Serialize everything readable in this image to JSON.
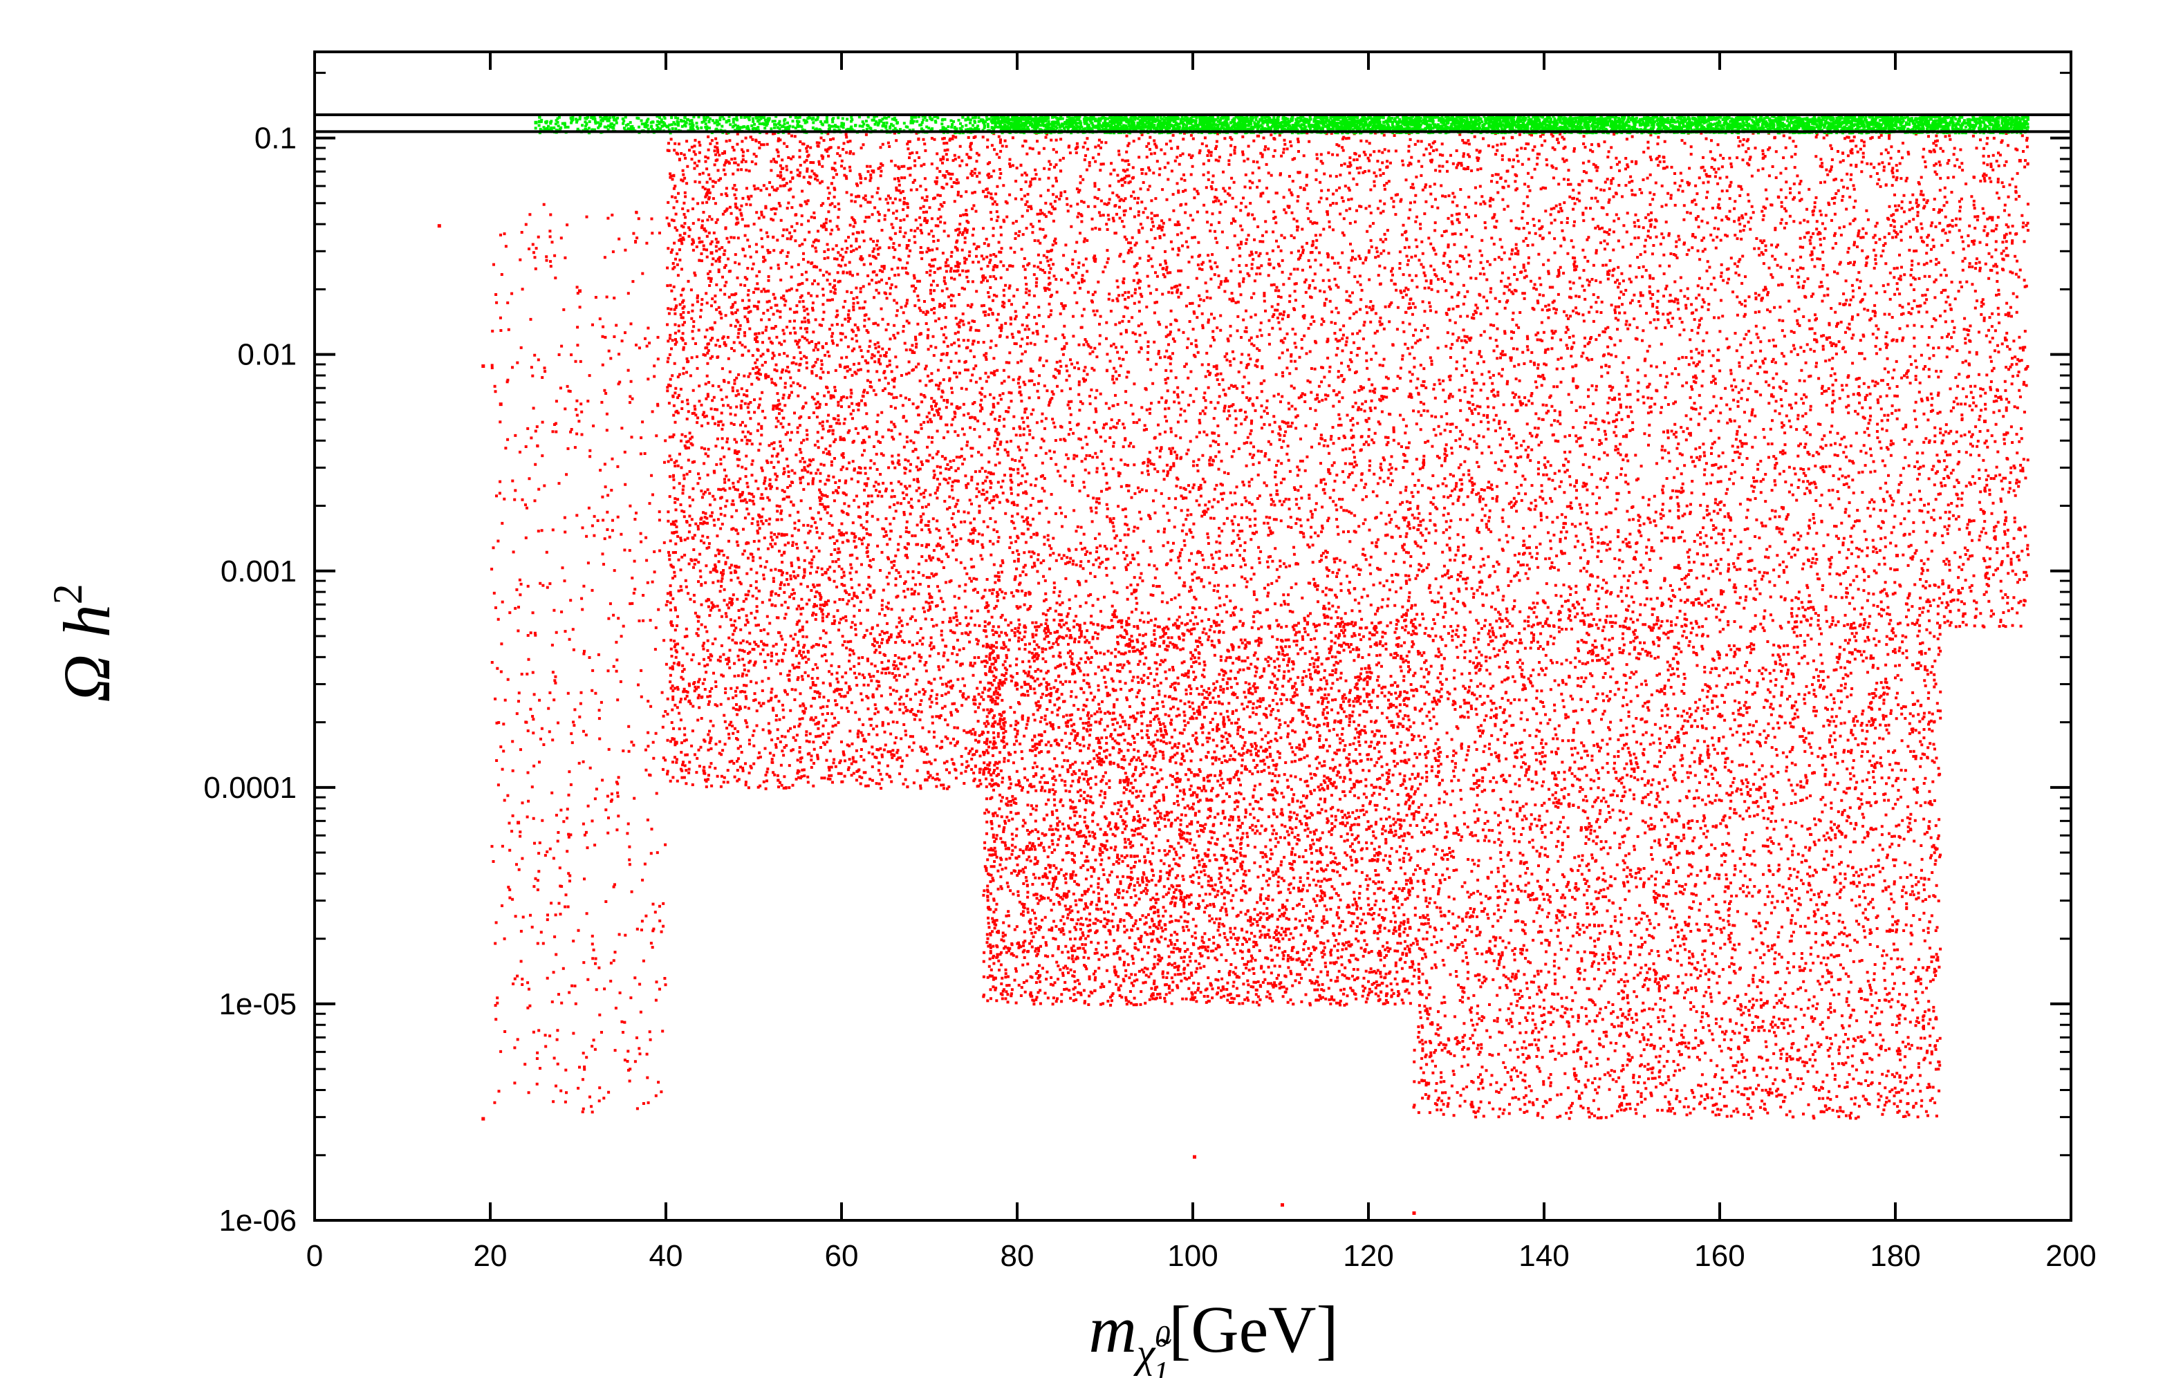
{
  "chart_data": {
    "type": "scatter",
    "title": "",
    "xlabel": {
      "base": "m",
      "subscript": "χ̃",
      "sub_sup": "0",
      "sub_sub": "1",
      "unit": "[GeV]"
    },
    "ylabel": {
      "text": "Ω h",
      "sup": "2"
    },
    "xlim": [
      0,
      200
    ],
    "ylim": [
      1e-06,
      0.25
    ],
    "yscale": "log",
    "grid": false,
    "legend": "none",
    "x_ticks": [
      0,
      20,
      40,
      60,
      80,
      100,
      120,
      140,
      160,
      180,
      200
    ],
    "x_tick_labels": [
      "0",
      "20",
      "40",
      "60",
      "80",
      "100",
      "120",
      "140",
      "160",
      "180",
      "200"
    ],
    "y_ticks": [
      1e-06,
      1e-05,
      0.0001,
      0.001,
      0.01,
      0.1
    ],
    "y_tick_labels": [
      "1e-06",
      "1e-05",
      "0.0001",
      "0.001",
      "0.01",
      "0.1"
    ],
    "reference_lines": [
      {
        "axis": "y",
        "value": 0.128
      },
      {
        "axis": "y",
        "value": 0.107
      }
    ],
    "colors": {
      "excluded_points": "#ff0000",
      "allowed_points": "#00ee00",
      "axes": "#000000"
    },
    "series": [
      {
        "color": "#ff0000",
        "description_regions": [
          {
            "x": [
              78,
              195
            ],
            "y": [
              0.00055,
              0.107
            ],
            "density": "very dense"
          },
          {
            "x": [
              76,
              125
            ],
            "y": [
              1e-05,
              0.0006
            ],
            "density": "dense"
          },
          {
            "x": [
              125,
              185
            ],
            "y": [
              3e-06,
              0.0006
            ],
            "density": "medium"
          },
          {
            "x": [
              40,
              78
            ],
            "y": [
              0.0001,
              0.107
            ],
            "density": "medium"
          },
          {
            "x": [
              20,
              40
            ],
            "y": [
              3e-06,
              0.05
            ],
            "density": "sparse"
          }
        ],
        "approx_points": [
          {
            "x": 14,
            "y": 0.04
          },
          {
            "x": 19,
            "y": 0.009
          },
          {
            "x": 19,
            "y": 3e-06
          },
          {
            "x": 21,
            "y": 0.006
          },
          {
            "x": 23,
            "y": 7e-05
          },
          {
            "x": 30,
            "y": 0.02
          },
          {
            "x": 45,
            "y": 0.03
          },
          {
            "x": 50,
            "y": 0.012
          },
          {
            "x": 58,
            "y": 0.001
          },
          {
            "x": 60,
            "y": 0.0015
          },
          {
            "x": 90,
            "y": 3e-05
          },
          {
            "x": 100,
            "y": 2e-06
          },
          {
            "x": 110,
            "y": 1.2e-06
          },
          {
            "x": 125,
            "y": 1.1e-06
          },
          {
            "x": 135,
            "y": 0.0006
          },
          {
            "x": 160,
            "y": 0.0008
          },
          {
            "x": 180,
            "y": 0.0012
          },
          {
            "x": 190,
            "y": 0.005
          },
          {
            "x": 194,
            "y": 0.08
          }
        ]
      },
      {
        "color": "#00ee00",
        "description_regions": [
          {
            "x": [
              77,
              195
            ],
            "y": [
              0.107,
              0.128
            ],
            "density": "solid band"
          },
          {
            "x": [
              25,
              77
            ],
            "y": [
              0.107,
              0.128
            ],
            "density": "sparse"
          }
        ],
        "approx_points": [
          {
            "x": 25,
            "y": 0.12
          },
          {
            "x": 40,
            "y": 0.115
          },
          {
            "x": 60,
            "y": 0.118
          },
          {
            "x": 80,
            "y": 0.115
          },
          {
            "x": 120,
            "y": 0.118
          },
          {
            "x": 160,
            "y": 0.116
          },
          {
            "x": 194,
            "y": 0.12
          }
        ]
      }
    ]
  }
}
